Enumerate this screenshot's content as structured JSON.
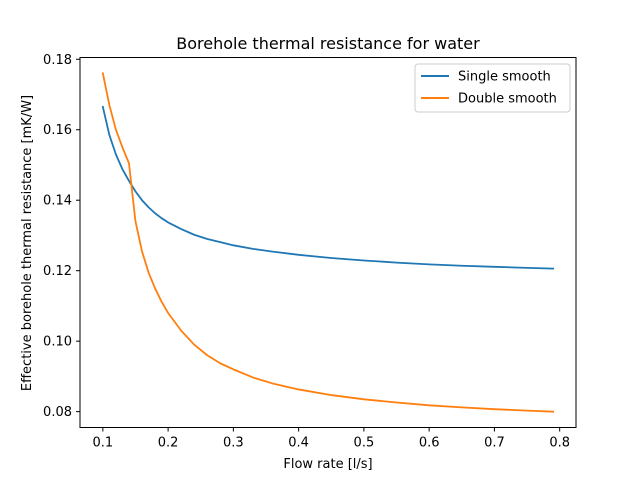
{
  "chart_data": {
    "type": "line",
    "title": "Borehole thermal resistance for water",
    "xlabel": "Flow rate [l/s]",
    "ylabel": "Effective borehole thermal resistance [mK/W]",
    "xlim": [
      0.065,
      0.825
    ],
    "ylim": [
      0.0755,
      0.1805
    ],
    "xticks": [
      0.1,
      0.2,
      0.3,
      0.4,
      0.5,
      0.6,
      0.7,
      0.8
    ],
    "xtick_labels": [
      "0.1",
      "0.2",
      "0.3",
      "0.4",
      "0.5",
      "0.6",
      "0.7",
      "0.8"
    ],
    "yticks": [
      0.08,
      0.1,
      0.12,
      0.14,
      0.16,
      0.18
    ],
    "ytick_labels": [
      "0.08",
      "0.10",
      "0.12",
      "0.14",
      "0.16",
      "0.18"
    ],
    "grid": false,
    "legend_position": "top-right",
    "series": [
      {
        "name": "Single smooth",
        "color": "#1f77b4",
        "x": [
          0.1,
          0.11,
          0.12,
          0.13,
          0.14,
          0.15,
          0.16,
          0.17,
          0.18,
          0.19,
          0.2,
          0.22,
          0.24,
          0.26,
          0.28,
          0.3,
          0.33,
          0.36,
          0.4,
          0.45,
          0.5,
          0.55,
          0.6,
          0.65,
          0.7,
          0.75,
          0.79
        ],
        "y": [
          0.1665,
          0.1585,
          0.153,
          0.1488,
          0.1455,
          0.1425,
          0.14,
          0.138,
          0.1363,
          0.1349,
          0.1337,
          0.1318,
          0.1302,
          0.129,
          0.1281,
          0.1272,
          0.1262,
          0.1254,
          0.1245,
          0.1236,
          0.1229,
          0.1223,
          0.1218,
          0.1214,
          0.1211,
          0.1208,
          0.1206
        ]
      },
      {
        "name": "Double smooth",
        "color": "#ff7f0e",
        "x": [
          0.1,
          0.11,
          0.12,
          0.13,
          0.14,
          0.15,
          0.16,
          0.17,
          0.18,
          0.19,
          0.2,
          0.22,
          0.24,
          0.26,
          0.28,
          0.3,
          0.33,
          0.36,
          0.4,
          0.45,
          0.5,
          0.55,
          0.6,
          0.65,
          0.7,
          0.75,
          0.79
        ],
        "y": [
          0.176,
          0.167,
          0.16,
          0.155,
          0.1505,
          0.134,
          0.1255,
          0.1195,
          0.115,
          0.1112,
          0.108,
          0.103,
          0.099,
          0.096,
          0.0937,
          0.092,
          0.0897,
          0.088,
          0.0863,
          0.0847,
          0.0835,
          0.0826,
          0.0818,
          0.0812,
          0.0807,
          0.0803,
          0.08
        ]
      }
    ]
  }
}
